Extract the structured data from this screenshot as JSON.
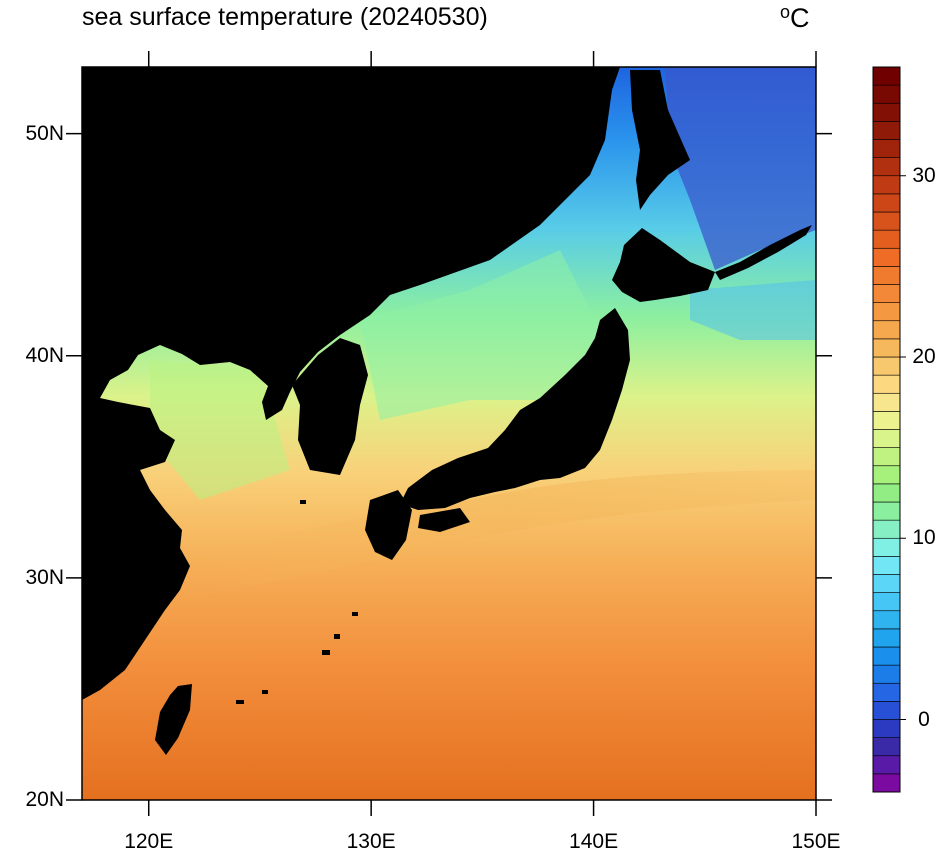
{
  "title": "sea surface temperature (20240530)",
  "units": {
    "symbol": "o",
    "letter": "C"
  },
  "map": {
    "projection": "cylindrical-equidistant",
    "lon_range": [
      117,
      150
    ],
    "lat_range": [
      20,
      53
    ],
    "land_color": "#000000",
    "latitude_ticks": [
      {
        "value": 50,
        "label": "50N"
      },
      {
        "value": 40,
        "label": "40N"
      },
      {
        "value": 30,
        "label": "30N"
      },
      {
        "value": 20,
        "label": "20N"
      }
    ],
    "longitude_ticks": [
      {
        "value": 120,
        "label": "120E"
      },
      {
        "value": 130,
        "label": "130E"
      },
      {
        "value": 140,
        "label": "140E"
      },
      {
        "value": 150,
        "label": "150E"
      }
    ]
  },
  "colorbar": {
    "range": [
      -4,
      36
    ],
    "step": 1,
    "ticks": [
      {
        "value": 0,
        "label": "0"
      },
      {
        "value": 10,
        "label": "10"
      },
      {
        "value": 20,
        "label": "20"
      },
      {
        "value": 30,
        "label": "30"
      }
    ],
    "colors": [
      "#7b0aa0",
      "#5a1aa8",
      "#3a2aa8",
      "#2b3ac0",
      "#2850d6",
      "#2466e4",
      "#1c7ce8",
      "#1a90ec",
      "#20a4ee",
      "#30b4f0",
      "#46c6f4",
      "#5cd6f6",
      "#72e6f4",
      "#80f0e4",
      "#86f0c4",
      "#8af0a0",
      "#92ee84",
      "#a6f07c",
      "#c0f282",
      "#d8f48a",
      "#ecf28e",
      "#f8e68e",
      "#fcd880",
      "#f8c86e",
      "#f6b85c",
      "#f6a84e",
      "#f49842",
      "#f28838",
      "#f07a2e",
      "#ee6c26",
      "#e45e20",
      "#d8521c",
      "#cc4618",
      "#c03a14",
      "#b03010",
      "#a0240c",
      "#901a08",
      "#821004",
      "#780802",
      "#700000"
    ]
  }
}
